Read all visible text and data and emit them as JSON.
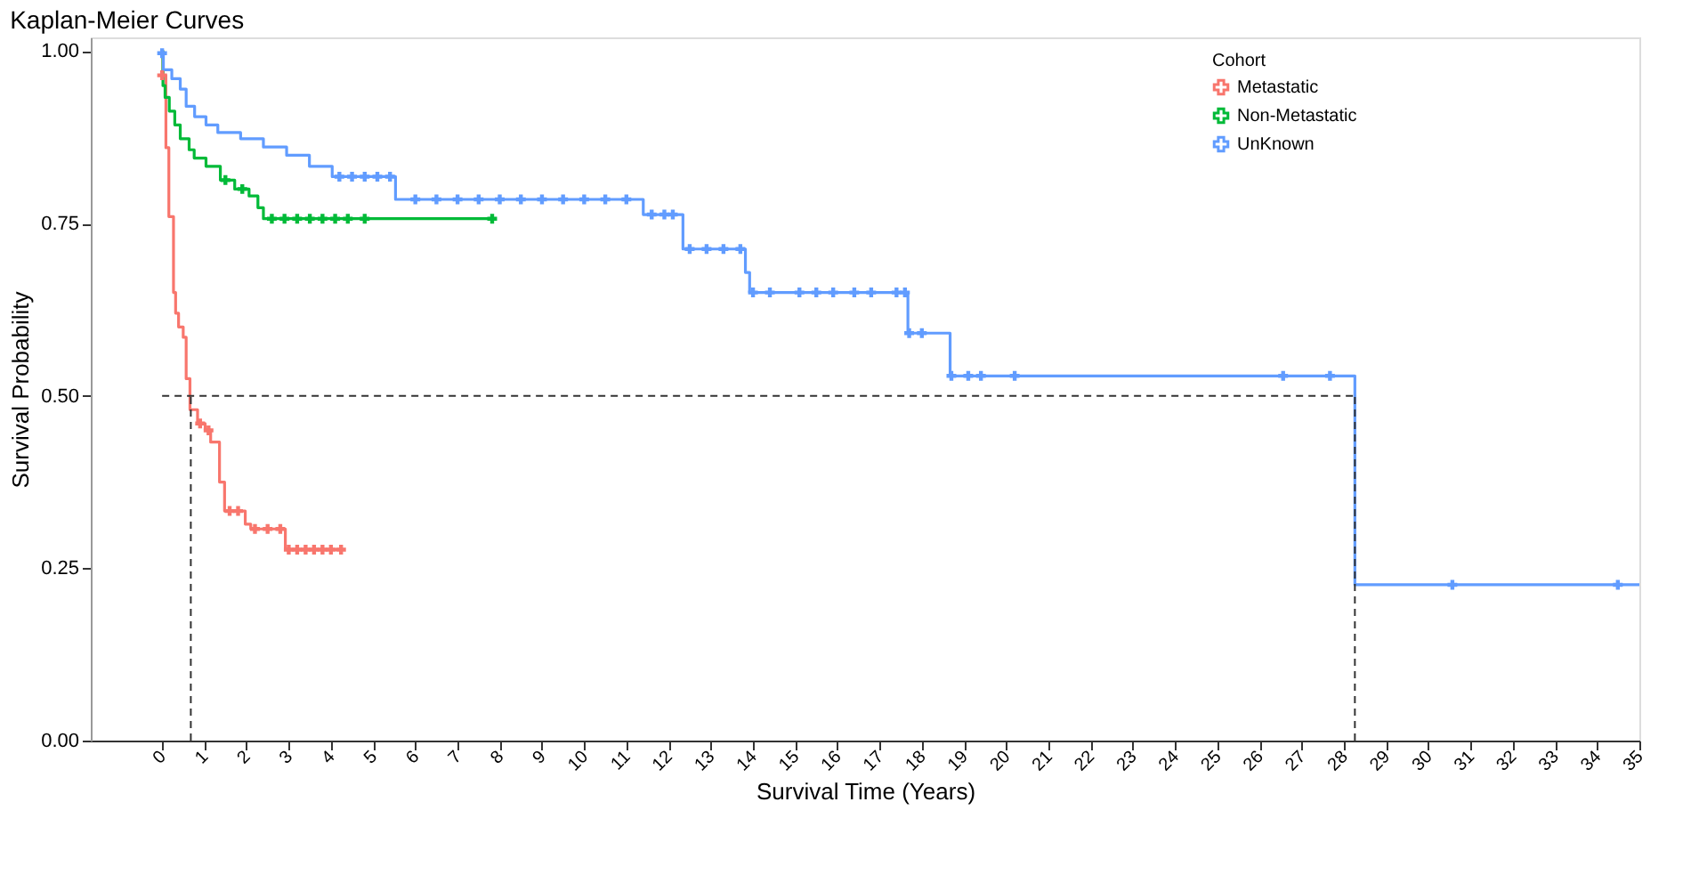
{
  "chart_data": {
    "type": "step",
    "title": "Kaplan-Meier Curves",
    "xlabel": "Survival Time (Years)",
    "ylabel": "Survival Probability",
    "legend_title": "Cohort",
    "legend": "top right",
    "grid": false,
    "xlim": [
      -1.69,
      35
    ],
    "ylim": [
      0,
      1.02
    ],
    "xticks": [
      0,
      1,
      2,
      3,
      4,
      5,
      6,
      7,
      8,
      9,
      10,
      11,
      12,
      13,
      14,
      15,
      16,
      17,
      18,
      19,
      20,
      21,
      22,
      23,
      24,
      25,
      26,
      27,
      28,
      29,
      30,
      31,
      32,
      33,
      34,
      35
    ],
    "yticks": [
      {
        "value": 0,
        "label": "0.00"
      },
      {
        "value": 0.25,
        "label": "0.25"
      },
      {
        "value": 0.5,
        "label": "0.50"
      },
      {
        "value": 0.75,
        "label": "0.75"
      },
      {
        "value": 1,
        "label": "1.00"
      }
    ],
    "series": [
      {
        "name": "Metastatic",
        "color": "#f8766d",
        "type": "step",
        "x": [
          0,
          0.02,
          0.09,
          0.16,
          0.27,
          0.32,
          0.39,
          0.5,
          0.57,
          0.66,
          0.84,
          1.02,
          1.15,
          1.36,
          1.48,
          1.97,
          2.1,
          2.92,
          4.24
        ],
        "values": [
          1.0,
          0.965,
          0.86,
          0.76,
          0.65,
          0.62,
          0.6,
          0.585,
          0.525,
          0.48,
          0.46,
          0.45,
          0.433,
          0.375,
          0.333,
          0.314,
          0.307,
          0.277,
          0.277
        ]
      },
      {
        "name": "Non-Metastatic",
        "color": "#00ba38",
        "type": "step",
        "x": [
          0,
          0.02,
          0.07,
          0.17,
          0.3,
          0.43,
          0.64,
          0.76,
          1.04,
          1.38,
          1.72,
          2.06,
          2.27,
          2.4,
          7.82
        ],
        "values": [
          1.0,
          0.95,
          0.933,
          0.913,
          0.893,
          0.873,
          0.857,
          0.845,
          0.833,
          0.813,
          0.8,
          0.79,
          0.773,
          0.757,
          0.757
        ]
      },
      {
        "name": "UnKnown",
        "color": "#619cff",
        "type": "step",
        "x": [
          -0.05,
          0.03,
          0.23,
          0.43,
          0.57,
          0.77,
          1.04,
          1.32,
          1.86,
          2.4,
          2.95,
          3.49,
          4.03,
          5.53,
          11.4,
          12.34,
          13.82,
          13.92,
          17.67,
          18.67,
          28.26,
          35
        ],
        "values": [
          0.997,
          0.973,
          0.96,
          0.945,
          0.92,
          0.905,
          0.893,
          0.882,
          0.873,
          0.861,
          0.849,
          0.833,
          0.818,
          0.785,
          0.763,
          0.713,
          0.679,
          0.65,
          0.591,
          0.529,
          0.226,
          0.226
        ]
      },
      {
        "color": "#f8766d",
        "type": "scatter",
        "marker": "cross",
        "x": [
          0.0,
          0.9,
          1.1,
          1.6,
          1.8,
          2.2,
          2.5,
          2.8,
          3.0,
          3.2,
          3.4,
          3.6,
          3.8,
          4.0,
          4.24
        ],
        "values": [
          0.965,
          0.46,
          0.45,
          0.333,
          0.333,
          0.307,
          0.307,
          0.307,
          0.277,
          0.277,
          0.277,
          0.277,
          0.277,
          0.277,
          0.277
        ]
      },
      {
        "color": "#00ba38",
        "type": "scatter",
        "marker": "cross",
        "x": [
          1.5,
          1.9,
          2.6,
          2.9,
          3.2,
          3.5,
          3.8,
          4.1,
          4.4,
          4.8,
          7.82
        ],
        "values": [
          0.813,
          0.8,
          0.757,
          0.757,
          0.757,
          0.757,
          0.757,
          0.757,
          0.757,
          0.757,
          0.757
        ]
      },
      {
        "color": "#619cff",
        "type": "scatter",
        "marker": "cross",
        "x": [
          0.0,
          4.2,
          4.5,
          4.8,
          5.1,
          5.4,
          6.0,
          6.5,
          7.0,
          7.5,
          8.0,
          8.5,
          9.0,
          9.5,
          10.0,
          10.5,
          11.0,
          11.6,
          11.9,
          12.1,
          12.5,
          12.9,
          13.3,
          13.7,
          14.0,
          14.4,
          15.1,
          15.5,
          15.9,
          16.4,
          16.8,
          17.4,
          17.6,
          17.7,
          18.0,
          18.7,
          19.1,
          19.4,
          20.2,
          26.56,
          27.67,
          30.57,
          34.49
        ],
        "values": [
          0.997,
          0.818,
          0.818,
          0.818,
          0.818,
          0.818,
          0.785,
          0.785,
          0.785,
          0.785,
          0.785,
          0.785,
          0.785,
          0.785,
          0.785,
          0.785,
          0.785,
          0.763,
          0.763,
          0.763,
          0.713,
          0.713,
          0.713,
          0.713,
          0.65,
          0.65,
          0.65,
          0.65,
          0.65,
          0.65,
          0.65,
          0.65,
          0.65,
          0.591,
          0.591,
          0.529,
          0.529,
          0.529,
          0.529,
          0.529,
          0.529,
          0.226,
          0.226
        ]
      },
      {
        "color": "#333333",
        "type": "line",
        "line_style": "dashed",
        "x": [
          0,
          28.26
        ],
        "values": [
          0.5,
          0.5
        ]
      },
      {
        "color": "#333333",
        "type": "line",
        "line_style": "dashed",
        "x": [
          0.68,
          0.68
        ],
        "values": [
          0,
          0.5
        ]
      },
      {
        "color": "#333333",
        "type": "line",
        "line_style": "dashed",
        "x": [
          28.26,
          28.26
        ],
        "values": [
          0,
          0.5
        ]
      }
    ]
  }
}
